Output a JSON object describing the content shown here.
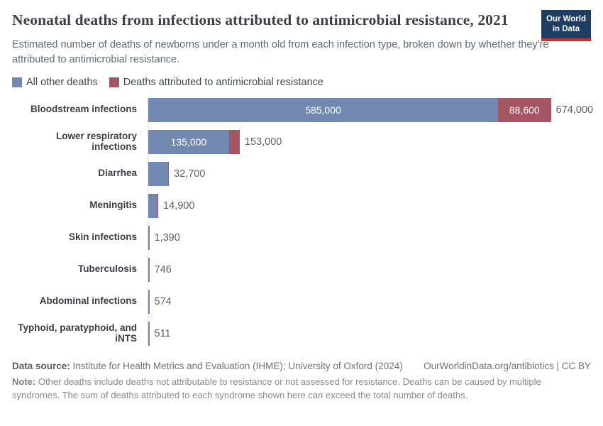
{
  "header": {
    "title": "Neonatal deaths from infections attributed to antimicrobial resistance, 2021",
    "subtitle": "Estimated number of deaths of newborns under a month old from each infection type, broken down by whether they're attributed to antimicrobial resistance.",
    "logo": {
      "line1": "Our World",
      "line2": "in Data"
    }
  },
  "legend": [
    {
      "label": "All other deaths",
      "color": "#7189b0"
    },
    {
      "label": "Deaths attributed to antimicrobial resistance",
      "color": "#a45762"
    }
  ],
  "chart_data": {
    "type": "bar",
    "orientation": "horizontal",
    "title": "Neonatal deaths from infections attributed to antimicrobial resistance, 2021",
    "xlim": [
      0,
      674000
    ],
    "grid": false,
    "legend_position": "top",
    "colors": {
      "other": "#7189b0",
      "amr": "#a45762"
    },
    "categories": [
      "Bloodstream infections",
      "Lower respiratory infections",
      "Diarrhea",
      "Meningitis",
      "Skin infections",
      "Tuberculosis",
      "Abdominal infections",
      "Typhoid, paratyphoid, and iNTS"
    ],
    "rows": [
      {
        "category": "Bloodstream infections",
        "other": 585000,
        "other_label": "585,000",
        "amr": 88600,
        "amr_label": "88,600",
        "total": 674000,
        "total_label": "674,000",
        "amr_sliver": false
      },
      {
        "category": "Lower respiratory infections",
        "other": 135000,
        "other_label": "135,000",
        "amr": 18000,
        "amr_label": "",
        "total": 153000,
        "total_label": "153,000",
        "amr_sliver": false
      },
      {
        "category": "Diarrhea",
        "other": 32700,
        "other_label": "",
        "amr": 0,
        "amr_label": "",
        "total": 32700,
        "total_label": "32,700",
        "amr_sliver": true
      },
      {
        "category": "Meningitis",
        "other": 14900,
        "other_label": "",
        "amr": 0,
        "amr_label": "",
        "total": 14900,
        "total_label": "14,900",
        "amr_sliver": true
      },
      {
        "category": "Skin infections",
        "other": 1390,
        "other_label": "",
        "amr": 0,
        "amr_label": "",
        "total": 1390,
        "total_label": "1,390",
        "amr_sliver": false
      },
      {
        "category": "Tuberculosis",
        "other": 746,
        "other_label": "",
        "amr": 0,
        "amr_label": "",
        "total": 746,
        "total_label": "746",
        "amr_sliver": false
      },
      {
        "category": "Abdominal infections",
        "other": 574,
        "other_label": "",
        "amr": 0,
        "amr_label": "",
        "total": 574,
        "total_label": "574",
        "amr_sliver": false
      },
      {
        "category": "Typhoid, paratyphoid, and iNTS",
        "other": 511,
        "other_label": "",
        "amr": 0,
        "amr_label": "",
        "total": 511,
        "total_label": "511",
        "amr_sliver": false
      }
    ]
  },
  "footer": {
    "datasource_label": "Data source:",
    "datasource_text": " Institute for Health Metrics and Evaluation (IHME); University of Oxford (2024)",
    "link_text": "OurWorldinData.org/antibiotics | CC BY",
    "note_label": "Note:",
    "note_text": " Other deaths include deaths not attributable to resistance or not assessed for resistance. Deaths can be caused by multiple syndromes. The sum of deaths attributed to each syndrome shown here can exceed the total number of deaths."
  }
}
